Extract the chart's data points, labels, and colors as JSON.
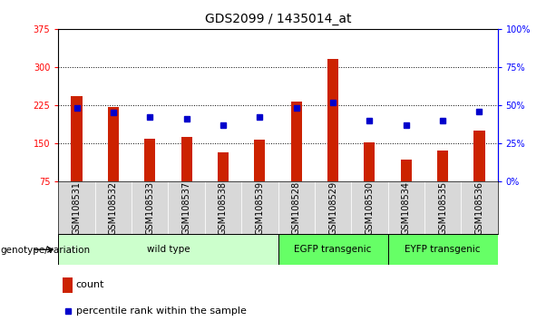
{
  "title": "GDS2099 / 1435014_at",
  "samples": [
    "GSM108531",
    "GSM108532",
    "GSM108533",
    "GSM108537",
    "GSM108538",
    "GSM108539",
    "GSM108528",
    "GSM108529",
    "GSM108530",
    "GSM108534",
    "GSM108535",
    "GSM108536"
  ],
  "counts": [
    243,
    222,
    158,
    163,
    133,
    157,
    232,
    315,
    152,
    118,
    135,
    175
  ],
  "percentiles": [
    48,
    45,
    42,
    41,
    37,
    42,
    48,
    52,
    40,
    37,
    40,
    46
  ],
  "groups": [
    {
      "label": "wild type",
      "start": 0,
      "end": 6,
      "color": "#ccffcc"
    },
    {
      "label": "EGFP transgenic",
      "start": 6,
      "end": 9,
      "color": "#66ff66"
    },
    {
      "label": "EYFP transgenic",
      "start": 9,
      "end": 12,
      "color": "#66ff66"
    }
  ],
  "bar_color": "#cc2200",
  "dot_color": "#0000cc",
  "ylim_left": [
    75,
    375
  ],
  "ylim_right": [
    0,
    100
  ],
  "yticks_left": [
    75,
    150,
    225,
    300,
    375
  ],
  "yticks_right": [
    0,
    25,
    50,
    75,
    100
  ],
  "bar_base": 75,
  "bar_width": 0.3,
  "label_count": "count",
  "label_percentile": "percentile rank within the sample",
  "genotype_label": "genotype/variation",
  "title_fontsize": 10,
  "tick_fontsize": 7,
  "legend_fontsize": 8
}
